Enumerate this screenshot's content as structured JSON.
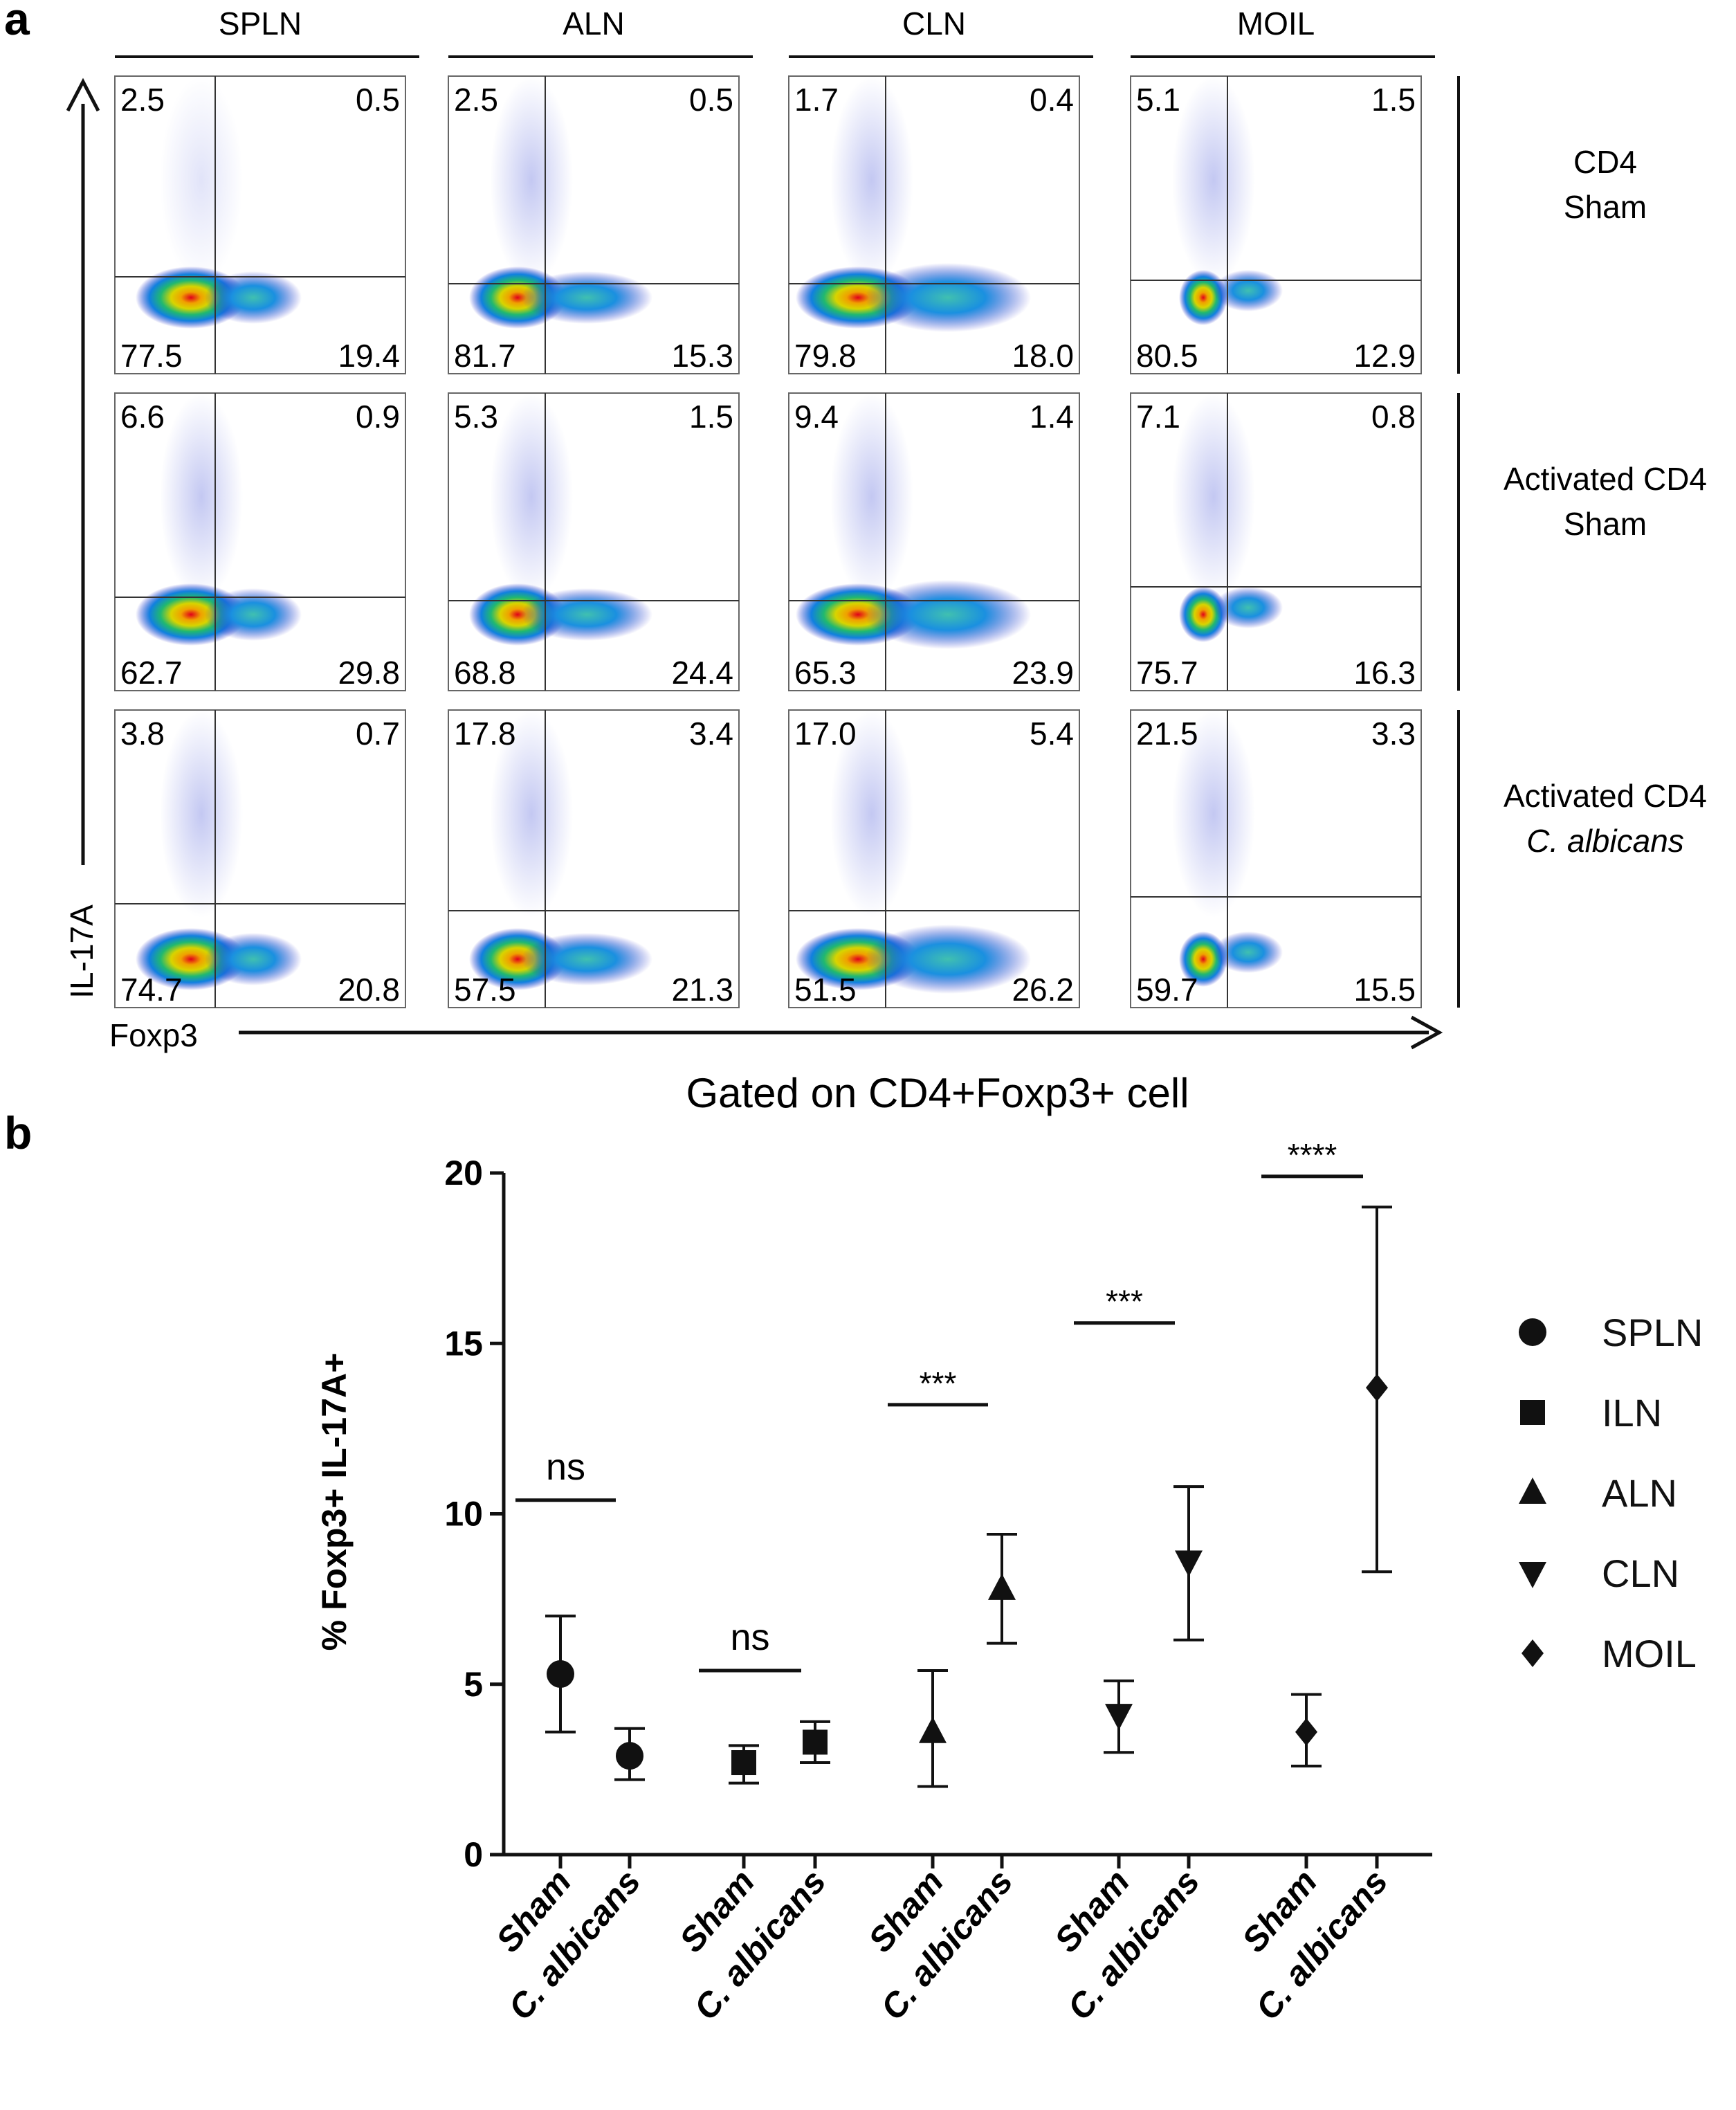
{
  "panel_a": {
    "label": "a",
    "columns": [
      "SPLN",
      "ALN",
      "CLN",
      "MOIL"
    ],
    "rows": [
      {
        "line1": "CD4",
        "line2": "Sham",
        "line2_italic": false
      },
      {
        "line1": "Activated CD4",
        "line2": "Sham",
        "line2_italic": false
      },
      {
        "line1": "Activated CD4",
        "line2": "C. albicans",
        "line2_italic": true
      }
    ],
    "y_axis_label": "IL-17A",
    "x_axis_label": "Foxp3",
    "quadrants": [
      [
        [
          "2.5",
          "0.5",
          "77.5",
          "19.4"
        ],
        [
          "2.5",
          "0.5",
          "81.7",
          "15.3"
        ],
        [
          "1.7",
          "0.4",
          "79.8",
          "18.0"
        ],
        [
          "5.1",
          "1.5",
          "80.5",
          "12.9"
        ]
      ],
      [
        [
          "6.6",
          "0.9",
          "62.7",
          "29.8"
        ],
        [
          "5.3",
          "1.5",
          "68.8",
          "24.4"
        ],
        [
          "9.4",
          "1.4",
          "65.3",
          "23.9"
        ],
        [
          "7.1",
          "0.8",
          "75.7",
          "16.3"
        ]
      ],
      [
        [
          "3.8",
          "0.7",
          "74.7",
          "20.8"
        ],
        [
          "17.8",
          "3.4",
          "57.5",
          "21.3"
        ],
        [
          "17.0",
          "5.4",
          "51.5",
          "26.2"
        ],
        [
          "21.5",
          "3.3",
          "59.7",
          "15.5"
        ]
      ]
    ]
  },
  "panel_b": {
    "label": "b"
  },
  "chart_data": {
    "type": "scatter",
    "title": "Gated on CD4+Foxp3+ cell",
    "ylabel": "% Foxp3+ IL-17A+",
    "xlabel": "",
    "ylim": [
      0,
      20
    ],
    "yticks": [
      0,
      5,
      10,
      15,
      20
    ],
    "grid": false,
    "legend_position": "right",
    "categories": [
      "Sham",
      "C. albicans",
      "Sham",
      "C. albicans",
      "Sham",
      "C. albicans",
      "Sham",
      "C. albicans",
      "Sham",
      "C. albicans"
    ],
    "series": [
      {
        "name": "SPLN",
        "marker": "circle",
        "points": [
          {
            "group": "Sham",
            "mean": 5.3,
            "low": 3.6,
            "high": 7.0
          },
          {
            "group": "C. albicans",
            "mean": 2.9,
            "low": 2.2,
            "high": 3.7
          }
        ]
      },
      {
        "name": "ILN",
        "marker": "square",
        "points": [
          {
            "group": "Sham",
            "mean": 2.7,
            "low": 2.1,
            "high": 3.2
          },
          {
            "group": "C. albicans",
            "mean": 3.3,
            "low": 2.7,
            "high": 3.9
          }
        ]
      },
      {
        "name": "ALN",
        "marker": "triangle-up",
        "points": [
          {
            "group": "Sham",
            "mean": 3.6,
            "low": 2.0,
            "high": 5.4
          },
          {
            "group": "C. albicans",
            "mean": 7.8,
            "low": 6.2,
            "high": 9.4
          }
        ]
      },
      {
        "name": "CLN",
        "marker": "triangle-down",
        "points": [
          {
            "group": "Sham",
            "mean": 4.1,
            "low": 3.0,
            "high": 5.1
          },
          {
            "group": "C. albicans",
            "mean": 8.6,
            "low": 6.3,
            "high": 10.8
          }
        ]
      },
      {
        "name": "MOIL",
        "marker": "diamond",
        "points": [
          {
            "group": "Sham",
            "mean": 3.6,
            "low": 2.6,
            "high": 4.7
          },
          {
            "group": "C. albicans",
            "mean": 13.7,
            "low": 8.3,
            "high": 19.0
          }
        ]
      }
    ],
    "significance": [
      {
        "series": "SPLN",
        "label": "ns",
        "y": 10.4
      },
      {
        "series": "ILN",
        "label": "ns",
        "y": 5.4
      },
      {
        "series": "ALN",
        "label": "***",
        "y": 13.2
      },
      {
        "series": "CLN",
        "label": "***",
        "y": 15.6
      },
      {
        "series": "MOIL",
        "label": "****",
        "y": 19.9
      }
    ]
  }
}
